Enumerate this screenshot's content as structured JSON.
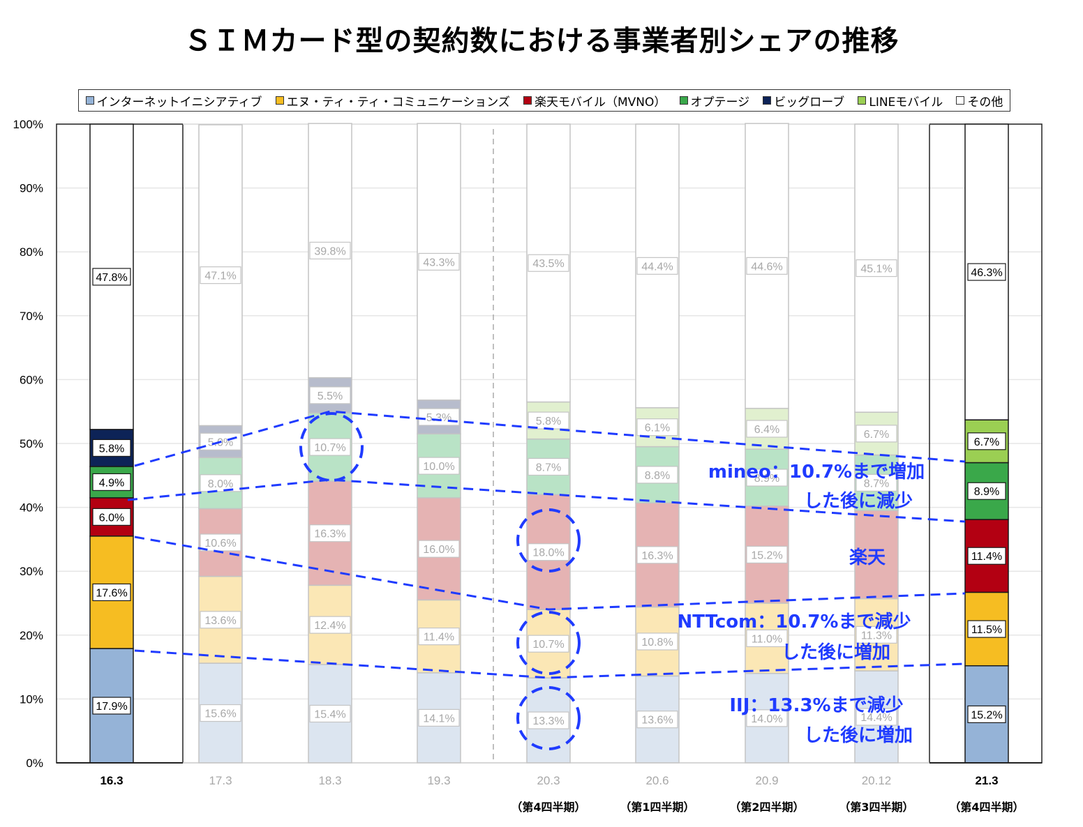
{
  "title": "ＳＩＭカード型の契約数における事業者別シェアの推移",
  "chart_data": {
    "type": "bar",
    "stacked": true,
    "percent_stacked": true,
    "title": "ＳＩＭカード型の契約数における事業者別シェアの推移",
    "xlabel": "",
    "ylabel": "",
    "ylim": [
      0,
      100
    ],
    "yticks": [
      "0%",
      "10%",
      "20%",
      "30%",
      "40%",
      "50%",
      "60%",
      "70%",
      "80%",
      "90%",
      "100%"
    ],
    "grid": true,
    "legend_position": "top",
    "categories": [
      "16.3",
      "17.3",
      "18.3",
      "19.3",
      "20.3",
      "20.6",
      "20.9",
      "20.12",
      "21.3"
    ],
    "sublabels": [
      "",
      "",
      "",
      "",
      "（第4四半期）",
      "（第1四半期）",
      "（第2四半期）",
      "（第3四半期）",
      "（第4四半期）"
    ],
    "highlighted_categories": [
      "16.3",
      "21.3"
    ],
    "series": [
      {
        "name": "インターネットイニシアティブ",
        "color": "#95b3d7",
        "faded_color": "#dce5f0",
        "values": [
          17.9,
          15.6,
          15.4,
          14.1,
          13.3,
          13.6,
          14.0,
          14.4,
          15.2
        ],
        "labels": [
          "17.9%",
          "15.6%",
          "15.4%",
          "14.1%",
          "13.3%",
          "13.6%",
          "14.0%",
          "14.4%",
          "15.2%"
        ]
      },
      {
        "name": "エヌ・ティ・ティ・コミュニケーションズ",
        "color": "#f6bd22",
        "faded_color": "#fbe7b5",
        "values": [
          17.6,
          13.6,
          12.4,
          11.4,
          10.7,
          10.8,
          11.0,
          11.3,
          11.5
        ],
        "labels": [
          "17.6%",
          "13.6%",
          "12.4%",
          "11.4%",
          "10.7%",
          "10.8%",
          "11.0%",
          "11.3%",
          "11.5%"
        ]
      },
      {
        "name": "楽天モバイル（MVNO）",
        "color": "#b30012",
        "faded_color": "#e5b3b3",
        "values": [
          6.0,
          10.6,
          16.3,
          16.0,
          18.0,
          16.3,
          15.2,
          13.8,
          11.4
        ],
        "labels": [
          "6.0%",
          "10.6%",
          "16.3%",
          "16.0%",
          "18.0%",
          "16.3%",
          "15.2%",
          "",
          "11.4%"
        ]
      },
      {
        "name": "オプテージ",
        "color": "#3aa84a",
        "faded_color": "#b9e3c6",
        "values": [
          4.9,
          8.0,
          10.7,
          10.0,
          8.7,
          8.8,
          8.9,
          8.7,
          8.9
        ],
        "labels": [
          "4.9%",
          "8.0%",
          "10.7%",
          "10.0%",
          "8.7%",
          "8.8%",
          "8.9%",
          "8.7%",
          "8.9%"
        ]
      },
      {
        "name": "ビッグローブ",
        "color": "#0d2357",
        "faded_color": "#b7bccc",
        "values": [
          5.8,
          5.0,
          5.5,
          5.3,
          0,
          0,
          0,
          0,
          0
        ],
        "labels": [
          "5.8%",
          "5.0%",
          "5.5%",
          "5.3%",
          "",
          "",
          "",
          "",
          ""
        ]
      },
      {
        "name": "LINEモバイル",
        "color": "#9bcf53",
        "faded_color": "#e1f0cf",
        "values": [
          0,
          0,
          0,
          0,
          5.8,
          6.1,
          6.4,
          6.7,
          6.7
        ],
        "labels": [
          "",
          "",
          "",
          "",
          "5.8%",
          "6.1%",
          "6.4%",
          "6.7%",
          "6.7%"
        ]
      },
      {
        "name": "その他",
        "color": "#ffffff",
        "faded_color": "#ffffff",
        "values": [
          47.8,
          47.1,
          39.8,
          43.3,
          43.5,
          44.4,
          44.6,
          45.1,
          46.3
        ],
        "labels": [
          "47.8%",
          "47.1%",
          "39.8%",
          "43.3%",
          "43.5%",
          "44.4%",
          "44.6%",
          "45.1%",
          "46.3%"
        ]
      }
    ],
    "annotations": [
      {
        "text_line1": "mineo：10.7%まで増加",
        "text_line2": "した後に減少"
      },
      {
        "text_line1": "楽天",
        "text_line2": ""
      },
      {
        "text_line1": "NTTcom：10.7%まで減少",
        "text_line2": "した後に増加"
      },
      {
        "text_line1": "IIJ：13.3%まで減少",
        "text_line2": "した後に増加"
      }
    ],
    "circled_points": [
      {
        "category": "18.3",
        "series": "オプテージ"
      },
      {
        "category": "20.3",
        "series": "楽天モバイル（MVNO）"
      },
      {
        "category": "20.3",
        "series": "エヌ・ティ・ティ・コミュニケーションズ"
      },
      {
        "category": "20.3",
        "series": "インターネットイニシアティブ"
      }
    ],
    "annotation_color": "#1f3bff"
  },
  "legend": [
    {
      "label": "インターネットイニシアティブ",
      "color": "#95b3d7"
    },
    {
      "label": "エヌ・ティ・ティ・コミュニケーションズ",
      "color": "#f6bd22"
    },
    {
      "label": "楽天モバイル（MVNO）",
      "color": "#b30012"
    },
    {
      "label": "オプテージ",
      "color": "#3aa84a"
    },
    {
      "label": "ビッグローブ",
      "color": "#0d2357"
    },
    {
      "label": "LINEモバイル",
      "color": "#9bcf53"
    },
    {
      "label": "その他",
      "color": "#ffffff"
    }
  ]
}
